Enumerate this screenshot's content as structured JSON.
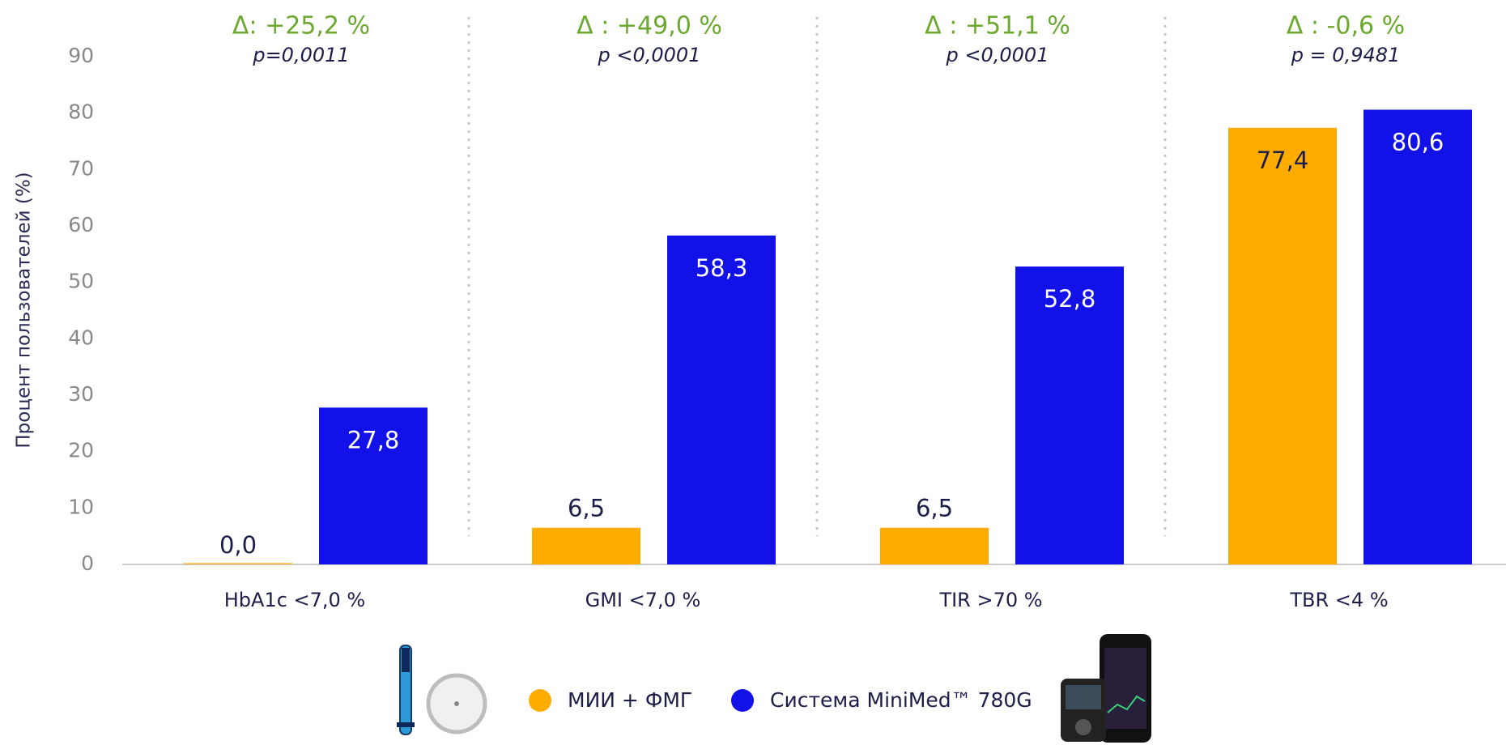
{
  "chart_data": {
    "type": "bar",
    "y_label": "Процент пользователей (%)",
    "categories": [
      "HbA1c <7,0 %",
      "GMI <7,0 %",
      "TIR >70 %",
      "TBR <4 %"
    ],
    "series": [
      {
        "name": "МИИ + ФМГ",
        "color": "#ffab00",
        "values": [
          0.0,
          6.5,
          6.5,
          77.4
        ],
        "value_labels": [
          "0,0",
          "6,5",
          "6,5",
          "77,4"
        ]
      },
      {
        "name": "Система MiniMed™ 780G",
        "color": "#1212e8",
        "values": [
          27.8,
          58.3,
          52.8,
          80.6
        ],
        "value_labels": [
          "27,8",
          "58,3",
          "52,8",
          "80,6"
        ]
      }
    ],
    "annotations": [
      {
        "delta": "Δ: +25,2 %",
        "p": "p=0,0011"
      },
      {
        "delta": "Δ : +49,0 %",
        "p": "p <0,0001"
      },
      {
        "delta": "Δ : +51,1 %",
        "p": "p <0,0001"
      },
      {
        "delta": "Δ : -0,6 %",
        "p": "p = 0,9481"
      }
    ],
    "ylim": [
      0,
      90
    ],
    "yticks": [
      0,
      10,
      20,
      30,
      40,
      50,
      60,
      70,
      80,
      90
    ]
  }
}
